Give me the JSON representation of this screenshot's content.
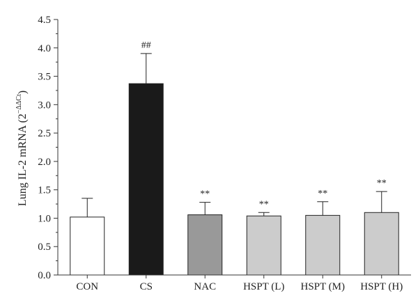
{
  "chart_data": {
    "type": "bar",
    "ylabel": "Lung IL-2 mRNA (2",
    "ylabel_superscript": "−ΔΔCt",
    "ylabel_close": ")",
    "ylim": [
      0,
      4.5
    ],
    "yticks": [
      "0.0",
      "0.5",
      "1.0",
      "1.5",
      "2.0",
      "2.5",
      "3.0",
      "3.5",
      "4.0",
      "4.5"
    ],
    "grid": false,
    "categories": [
      "CON",
      "CS",
      "NAC",
      "HSPT (L)",
      "HSPT (M)",
      "HSPT (H)"
    ],
    "values": [
      1.02,
      3.37,
      1.06,
      1.04,
      1.05,
      1.1
    ],
    "errors": [
      0.33,
      0.53,
      0.22,
      0.06,
      0.24,
      0.37
    ],
    "significance": [
      "",
      "##",
      "**",
      "**",
      "**",
      "**"
    ],
    "colors": {
      "bars": [
        "#ffffff",
        "#1a1a1a",
        "#999999",
        "#cccccc",
        "#cccccc",
        "#cccccc"
      ],
      "axis": "#333333"
    }
  }
}
